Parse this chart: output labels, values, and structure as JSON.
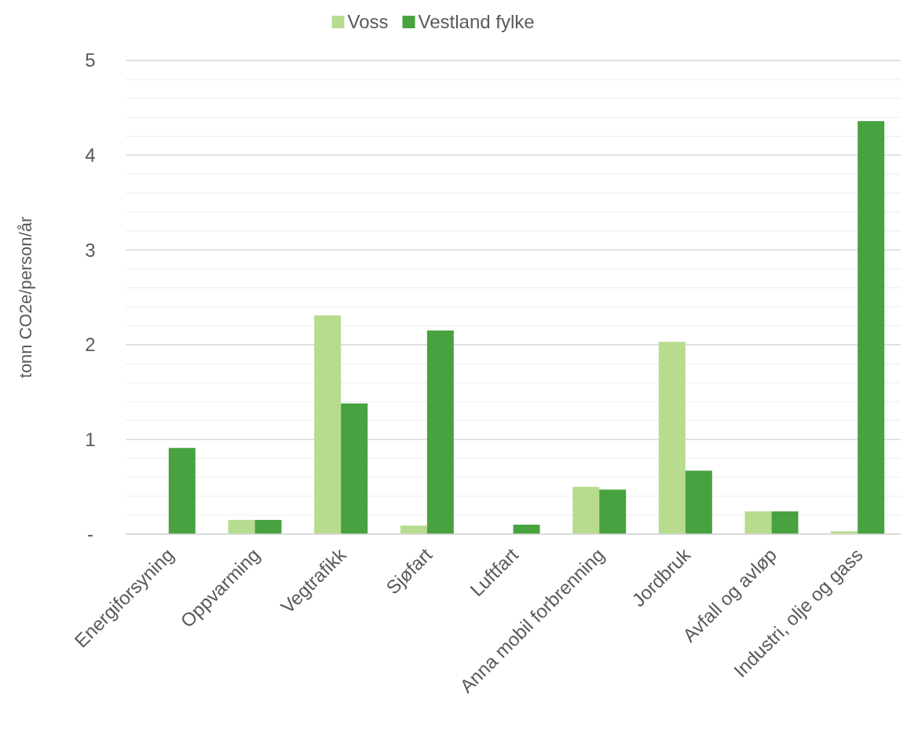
{
  "chart_data": {
    "type": "bar",
    "ylabel": "tonn CO2e/person/år",
    "categories": [
      "Energiforsyning",
      "Oppvarming",
      "Vegtrafikk",
      "Sjøfart",
      "Luftfart",
      "Anna mobil forbrenning",
      "Jordbruk",
      "Avfall og avløp",
      "Industri, olje og gass"
    ],
    "series": [
      {
        "name": "Voss",
        "color": "#b7dc8f",
        "values": [
          0,
          0.15,
          2.31,
          0.09,
          0,
          0.5,
          2.03,
          0.24,
          0.03
        ]
      },
      {
        "name": "Vestland fylke",
        "color": "#47a23f",
        "values": [
          0.91,
          0.15,
          1.38,
          2.15,
          0.1,
          0.47,
          0.67,
          0.24,
          4.36
        ]
      }
    ],
    "ylim": [
      0,
      5
    ],
    "yticks": [
      {
        "value": 0,
        "label": "-"
      },
      {
        "value": 0.2,
        "label": null
      },
      {
        "value": 0.4,
        "label": null
      },
      {
        "value": 0.6,
        "label": null
      },
      {
        "value": 0.8,
        "label": null
      },
      1,
      {
        "value": 1.2,
        "label": null
      },
      {
        "value": 1.4,
        "label": null
      },
      {
        "value": 1.6,
        "label": null
      },
      {
        "value": 1.8,
        "label": null
      },
      2,
      {
        "value": 2.2,
        "label": null
      },
      {
        "value": 2.4,
        "label": null
      },
      {
        "value": 2.6,
        "label": null
      },
      {
        "value": 2.8,
        "label": null
      },
      3,
      {
        "value": 3.2,
        "label": null
      },
      {
        "value": 3.4,
        "label": null
      },
      {
        "value": 3.6,
        "label": null
      },
      {
        "value": 3.8,
        "label": null
      },
      4,
      {
        "value": 4.2,
        "label": null
      },
      {
        "value": 4.4,
        "label": null
      },
      {
        "value": 4.6,
        "label": null
      },
      {
        "value": 4.8,
        "label": null
      },
      5
    ],
    "grid": "y",
    "legend": "top"
  }
}
